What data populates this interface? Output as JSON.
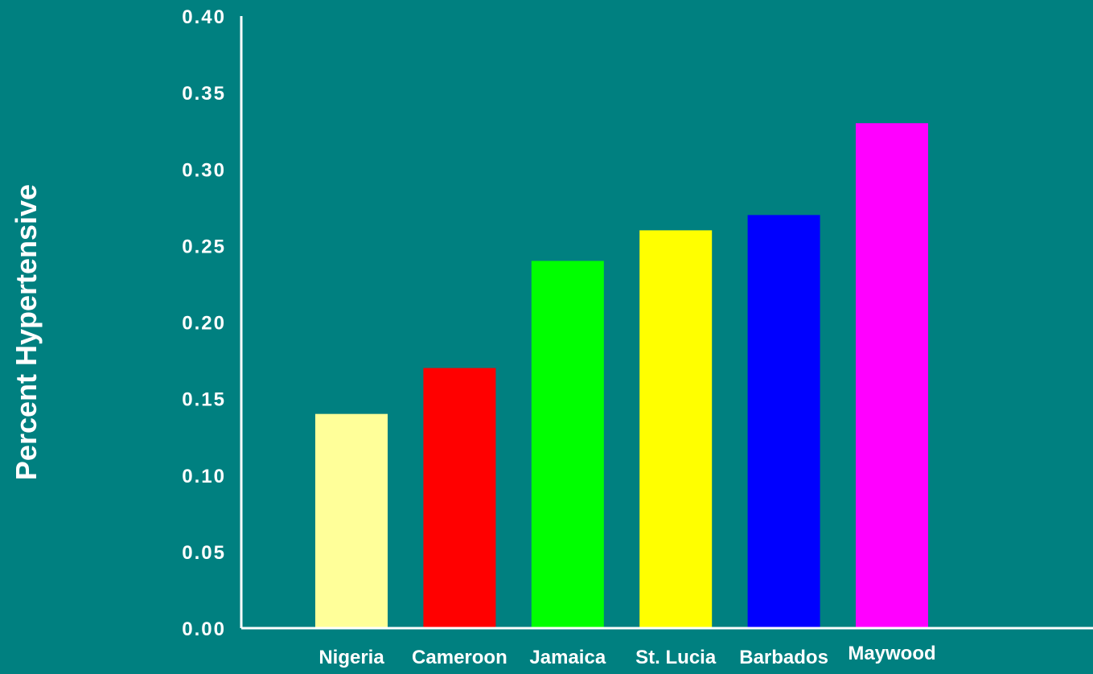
{
  "chart_data": {
    "type": "bar",
    "title": "",
    "xlabel": "",
    "ylabel": "Percent Hypertensive",
    "categories": [
      "Nigeria",
      "Cameroon",
      "Jamaica",
      "St. Lucia",
      "Barbados",
      "Maywood"
    ],
    "values": [
      0.14,
      0.17,
      0.24,
      0.26,
      0.27,
      0.33
    ],
    "bar_colors": [
      "#FFFF99",
      "#FF0000",
      "#00FF00",
      "#FFFF00",
      "#0000FF",
      "#FF00FF"
    ],
    "ylim": [
      0,
      0.4
    ],
    "yticks": [
      "0.00",
      "0.05",
      "0.10",
      "0.15",
      "0.20",
      "0.25",
      "0.30",
      "0.35",
      "0.40"
    ],
    "grid": false,
    "legend": "none"
  },
  "colors": {
    "background": "#008080",
    "axis": "#FFFFFF",
    "text": "#FFFFFF"
  }
}
